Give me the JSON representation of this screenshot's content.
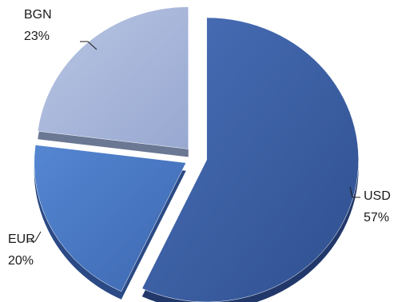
{
  "chart_data": {
    "type": "pie",
    "title": "",
    "style": "3d-exploded",
    "slices": [
      {
        "label": "USD",
        "value": 57,
        "percent_label": "57%",
        "color": "#3a5fa8",
        "side_color": "#22386a"
      },
      {
        "label": "EUR",
        "value": 20,
        "percent_label": "20%",
        "color": "#4a7ac8",
        "side_color": "#2b4a85"
      },
      {
        "label": "BGN",
        "value": 23,
        "percent_label": "23%",
        "color": "#a9b8dc",
        "side_color": "#6b7894"
      }
    ],
    "legend": "none"
  }
}
